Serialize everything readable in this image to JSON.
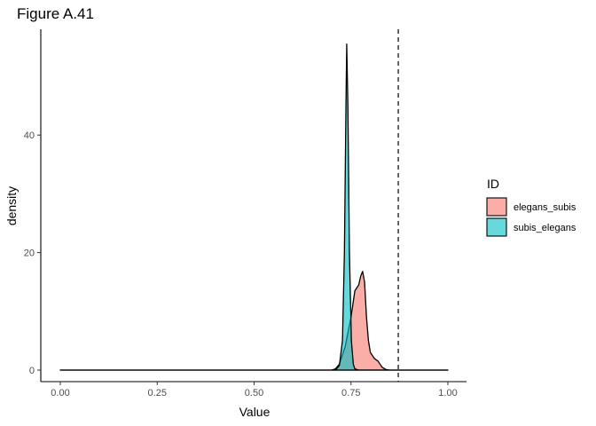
{
  "chart_data": {
    "type": "area",
    "title": "Figure A.41",
    "xlabel": "Value",
    "ylabel": "density",
    "xlim": [
      0,
      1
    ],
    "ylim": [
      0,
      56
    ],
    "x_ticks": [
      {
        "value": 0,
        "label": "0.00"
      },
      {
        "value": 0.25,
        "label": "0.25"
      },
      {
        "value": 0.5,
        "label": "0.50"
      },
      {
        "value": 0.75,
        "label": "0.75"
      },
      {
        "value": 1.0,
        "label": "1.00"
      }
    ],
    "y_ticks": [
      {
        "value": 0,
        "label": "0"
      },
      {
        "value": 20,
        "label": "20"
      },
      {
        "value": 40,
        "label": "40"
      }
    ],
    "grid": false,
    "legend": {
      "title": "ID",
      "position": "right"
    },
    "reference_line": {
      "x": 0.872,
      "style": "dashed"
    },
    "series": [
      {
        "name": "elegans_subis",
        "color": "#F8766D",
        "points": [
          [
            0.0,
            0
          ],
          [
            0.7,
            0
          ],
          [
            0.71,
            0.2
          ],
          [
            0.72,
            1.0
          ],
          [
            0.735,
            4.0
          ],
          [
            0.75,
            9.0
          ],
          [
            0.76,
            13.5
          ],
          [
            0.77,
            14.5
          ],
          [
            0.775,
            16.0
          ],
          [
            0.78,
            16.8
          ],
          [
            0.785,
            15.0
          ],
          [
            0.79,
            9.0
          ],
          [
            0.795,
            5.0
          ],
          [
            0.8,
            3.0
          ],
          [
            0.81,
            2.0
          ],
          [
            0.82,
            1.5
          ],
          [
            0.83,
            0.5
          ],
          [
            0.84,
            0.1
          ],
          [
            0.85,
            0
          ],
          [
            1.0,
            0
          ]
        ]
      },
      {
        "name": "subis_elegans",
        "color": "#00BFC4",
        "points": [
          [
            0.0,
            0
          ],
          [
            0.71,
            0
          ],
          [
            0.72,
            0.8
          ],
          [
            0.728,
            5.0
          ],
          [
            0.733,
            20.0
          ],
          [
            0.737,
            45.0
          ],
          [
            0.739,
            55.5
          ],
          [
            0.742,
            45.0
          ],
          [
            0.746,
            20.0
          ],
          [
            0.751,
            5.0
          ],
          [
            0.756,
            1.0
          ],
          [
            0.76,
            0.2
          ],
          [
            0.77,
            0
          ],
          [
            1.0,
            0
          ]
        ]
      }
    ]
  }
}
